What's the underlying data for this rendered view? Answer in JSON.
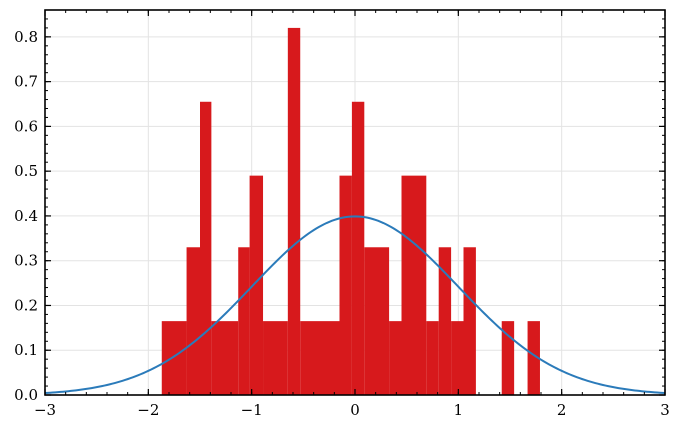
{
  "chart_data": {
    "type": "bar",
    "title": "",
    "xlabel": "",
    "ylabel": "",
    "xlim": [
      -3,
      3
    ],
    "ylim": [
      0,
      0.86
    ],
    "grid": true,
    "x_ticks": [
      -3,
      -2,
      -1,
      0,
      1,
      2,
      3
    ],
    "x_tick_labels": [
      "−3",
      "−2",
      "−1",
      "0",
      "1",
      "2",
      "3"
    ],
    "y_ticks": [
      0.0,
      0.1,
      0.2,
      0.3,
      0.4,
      0.5,
      0.6,
      0.7,
      0.8
    ],
    "y_tick_labels": [
      "0.0",
      "0.1",
      "0.2",
      "0.3",
      "0.4",
      "0.5",
      "0.6",
      "0.7",
      "0.8"
    ],
    "bin_width": 0.122,
    "histogram": {
      "color": "#d7191c",
      "bins": [
        {
          "x0": -1.87,
          "x1": -1.63,
          "value": 0.165
        },
        {
          "x0": -1.63,
          "x1": -1.5,
          "value": 0.33
        },
        {
          "x0": -1.5,
          "x1": -1.39,
          "value": 0.655
        },
        {
          "x0": -1.39,
          "x1": -1.13,
          "value": 0.165
        },
        {
          "x0": -1.13,
          "x1": -1.02,
          "value": 0.33
        },
        {
          "x0": -1.02,
          "x1": -0.89,
          "value": 0.49
        },
        {
          "x0": -0.89,
          "x1": -0.65,
          "value": 0.165
        },
        {
          "x0": -0.65,
          "x1": -0.53,
          "value": 0.82
        },
        {
          "x0": -0.53,
          "x1": -0.15,
          "value": 0.165
        },
        {
          "x0": -0.15,
          "x1": -0.03,
          "value": 0.49
        },
        {
          "x0": -0.03,
          "x1": 0.09,
          "value": 0.655
        },
        {
          "x0": 0.09,
          "x1": 0.33,
          "value": 0.33
        },
        {
          "x0": 0.33,
          "x1": 0.45,
          "value": 0.165
        },
        {
          "x0": 0.45,
          "x1": 0.69,
          "value": 0.49
        },
        {
          "x0": 0.69,
          "x1": 0.81,
          "value": 0.165
        },
        {
          "x0": 0.81,
          "x1": 0.93,
          "value": 0.33
        },
        {
          "x0": 0.93,
          "x1": 1.05,
          "value": 0.165
        },
        {
          "x0": 1.05,
          "x1": 1.17,
          "value": 0.33
        },
        {
          "x0": 1.42,
          "x1": 1.54,
          "value": 0.165
        },
        {
          "x0": 1.67,
          "x1": 1.79,
          "value": 0.165
        }
      ]
    },
    "curve": {
      "type": "line",
      "color": "#2b7bba",
      "function": "standard normal pdf",
      "mean": 0,
      "std": 1,
      "x_range": [
        -3,
        3
      ]
    }
  }
}
